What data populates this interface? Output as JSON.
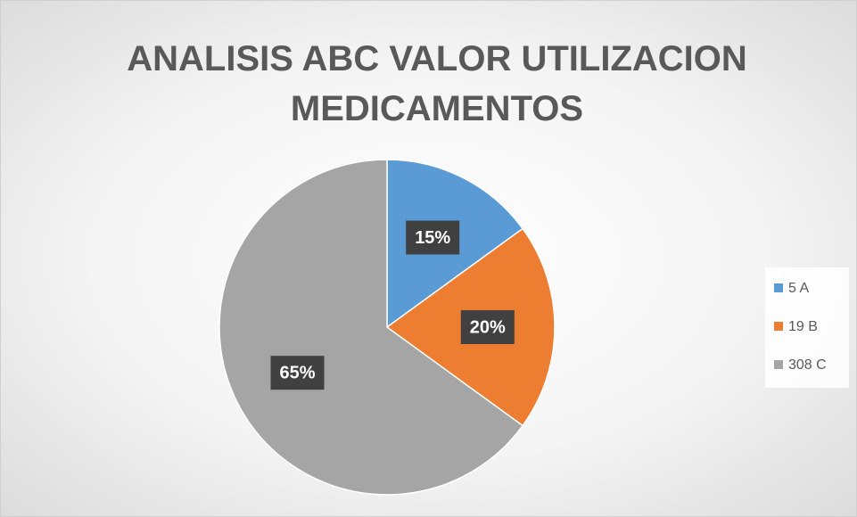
{
  "chart_data": {
    "type": "pie",
    "title": "ANALISIS ABC VALOR UTILIZACION MEDICAMENTOS",
    "categories": [
      "5 A",
      "19 B",
      "308 C"
    ],
    "values": [
      15,
      20,
      65
    ],
    "value_labels": [
      "15%",
      "20%",
      "65%"
    ],
    "colors": [
      "#5b9bd5",
      "#ed7d31",
      "#a5a5a5"
    ],
    "legend": "right"
  }
}
